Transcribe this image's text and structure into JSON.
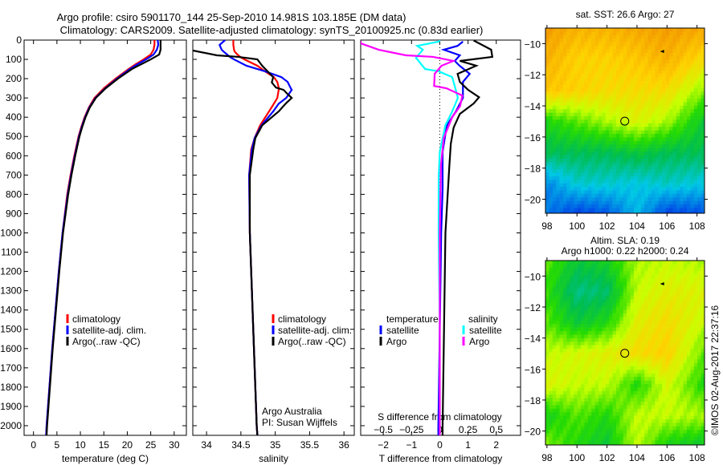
{
  "title": {
    "line1": "Argo profile: csiro 5901170_144 25-Sep-2010 14.981S 103.185E (DM data)",
    "line2": "Climatology: CARS2009. Satellite-adjusted climatology: synTS_20100925.nc (0.83d earlier)"
  },
  "credits": {
    "institution": "Argo Australia",
    "pi": "PI: Susan Wijffels"
  },
  "timestamp": "©IMOS 02-Aug-2017 22:37:16",
  "colors": {
    "climatology": "#ff0000",
    "satellite": "#0000ff",
    "argo": "#000000",
    "sal_satellite": "#00ffff",
    "sal_argo": "#ff00ff"
  },
  "chart_data": [
    {
      "type": "line",
      "id": "temperature",
      "xlabel": "temperature (deg C)",
      "ylabel": "depth",
      "xlim": [
        -2,
        32.6
      ],
      "ylim": [
        2050,
        0
      ],
      "xticks": [
        0,
        5,
        10,
        15,
        20,
        25,
        30
      ],
      "yticks": [
        0,
        100,
        200,
        300,
        400,
        500,
        600,
        700,
        800,
        900,
        1000,
        1100,
        1200,
        1300,
        1400,
        1500,
        1600,
        1700,
        1800,
        1900,
        2000
      ],
      "legend": [
        "climatology",
        "satellite-adj. clim.",
        "Argo(..raw -QC)"
      ],
      "series": [
        {
          "name": "climatology",
          "color": "#ff0000",
          "depth": [
            0,
            25,
            50,
            75,
            100,
            125,
            150,
            200,
            250,
            300,
            350,
            400,
            450,
            500,
            600,
            700,
            800,
            1000,
            1200,
            1400,
            1600,
            1800,
            2000,
            2050
          ],
          "values": [
            25.8,
            25.8,
            25.6,
            25,
            23.5,
            21.8,
            20.3,
            17.5,
            15,
            13,
            11.8,
            10.9,
            10.2,
            9.6,
            8.7,
            7.9,
            7.2,
            6.2,
            5.4,
            4.7,
            4,
            3.4,
            2.8,
            2.7
          ]
        },
        {
          "name": "satellite-adj. clim.",
          "color": "#0000ff",
          "depth": [
            0,
            25,
            50,
            75,
            100,
            125,
            150,
            200,
            250,
            300,
            350,
            400,
            450,
            500,
            600,
            700,
            800,
            1000,
            1200,
            1400,
            1600,
            1800,
            2000,
            2050
          ],
          "values": [
            26.5,
            26.6,
            26.3,
            25.6,
            24,
            22.2,
            20.6,
            17.8,
            15.3,
            13.2,
            11.9,
            11,
            10.3,
            9.7,
            8.8,
            8,
            7.3,
            6.2,
            5.4,
            4.7,
            4,
            3.4,
            2.8,
            2.7
          ]
        },
        {
          "name": "Argo(..raw -QC)",
          "color": "#000000",
          "depth": [
            0,
            25,
            50,
            75,
            100,
            125,
            150,
            200,
            250,
            300,
            350,
            400,
            450,
            500,
            600,
            700,
            800,
            1000,
            1200,
            1400,
            1600,
            1800,
            2000,
            2050
          ],
          "values": [
            27.1,
            27.1,
            27.1,
            26.8,
            25,
            23,
            21,
            18,
            15.4,
            13.3,
            12,
            11.1,
            10.4,
            9.8,
            8.9,
            8.1,
            7.4,
            6.3,
            5.5,
            4.8,
            4.1,
            3.5,
            2.9,
            2.8
          ]
        }
      ]
    },
    {
      "type": "line",
      "id": "salinity",
      "xlabel": "salinity",
      "ylabel": "depth",
      "xlim": [
        33.8,
        36.15
      ],
      "ylim": [
        2050,
        0
      ],
      "xticks": [
        34,
        34.5,
        35,
        35.5,
        36
      ],
      "legend": [
        "climatology",
        "satellite-adj. clim.",
        "Argo(..raw -QC)"
      ],
      "series": [
        {
          "name": "climatology",
          "color": "#ff0000",
          "depth": [
            0,
            25,
            50,
            60,
            75,
            90,
            100,
            133,
            162,
            192,
            217,
            246,
            258,
            300,
            330,
            370,
            442,
            508,
            567,
            700,
            1000,
            1500,
            2000,
            2050
          ],
          "values": [
            34.39,
            34.39,
            34.4,
            34.41,
            34.45,
            34.5,
            34.55,
            34.74,
            34.85,
            34.98,
            35.03,
            35.05,
            35.05,
            35.03,
            34.98,
            34.91,
            34.78,
            34.7,
            34.65,
            34.62,
            34.63,
            34.68,
            34.73,
            34.74
          ]
        },
        {
          "name": "satellite-adj. clim.",
          "color": "#0000ff",
          "depth": [
            0,
            25,
            50,
            60,
            75,
            90,
            100,
            133,
            162,
            192,
            217,
            246,
            258,
            300,
            330,
            370,
            442,
            508,
            567,
            700,
            1000,
            1500,
            2000,
            2050
          ],
          "values": [
            34.27,
            34.19,
            34.22,
            34.25,
            34.3,
            34.35,
            34.4,
            34.58,
            34.85,
            35.09,
            35.18,
            35.22,
            35.24,
            35.16,
            35.05,
            34.97,
            34.8,
            34.7,
            34.66,
            34.62,
            34.63,
            34.68,
            34.73,
            34.74
          ]
        },
        {
          "name": "Argo(..raw -QC)",
          "color": "#000000",
          "depth": [
            54,
            79,
            87,
            100,
            133,
            192,
            220,
            246,
            258,
            280,
            300,
            330,
            370,
            442,
            508,
            567,
            700,
            1000,
            1500,
            2000,
            2050
          ],
          "values": [
            33.8,
            34.15,
            34.46,
            34.74,
            34.81,
            34.97,
            34.95,
            35.01,
            35.12,
            35.18,
            35.24,
            35.15,
            35.05,
            34.81,
            34.71,
            34.68,
            34.63,
            34.63,
            34.68,
            34.73,
            34.74
          ]
        }
      ]
    },
    {
      "type": "line",
      "id": "difference",
      "xlabel": "T difference from climatology",
      "x2label": "S difference from climatology",
      "xlim": [
        -2.8,
        2.86
      ],
      "ylim": [
        2050,
        0
      ],
      "s_per_t": 0.25,
      "xticks": [
        -2,
        -1,
        0,
        1,
        2
      ],
      "x2ticks": [
        -0.5,
        -0.25,
        0,
        0.25,
        0.5
      ],
      "legend_headers": [
        "temperature",
        "salinity"
      ],
      "legend": [
        "satellite",
        "Argo",
        "satellite",
        "Argo"
      ],
      "series": [
        {
          "name": "temperature satellite",
          "variable": "T",
          "color": "#0000ff",
          "depth": [
            8,
            30,
            50,
            79,
            108,
            133,
            175,
            217,
            300,
            370,
            442,
            579,
            775,
            1000,
            1500,
            2000,
            2050
          ],
          "values": [
            0.82,
            0.63,
            0.14,
            0.71,
            0.53,
            0.7,
            1.06,
            0.82,
            0.82,
            0.57,
            0.25,
            0.1,
            0.1,
            0.05,
            0,
            -0.05,
            -0.05
          ]
        },
        {
          "name": "temperature Argo",
          "variable": "T",
          "color": "#000000",
          "depth": [
            2,
            50,
            87,
            108,
            133,
            175,
            217,
            258,
            296,
            329,
            383,
            454,
            538,
            650,
            775,
            1000,
            1500,
            2000,
            2050
          ],
          "values": [
            1.2,
            1.82,
            1.86,
            0.71,
            1.29,
            0.63,
            0.71,
            1.0,
            1.39,
            1.2,
            0.71,
            0.49,
            0.39,
            0.34,
            0.29,
            0.2,
            0.15,
            0.1,
            0.1
          ]
        },
        {
          "name": "salinity satellite",
          "variable": "S",
          "color": "#00ffff",
          "depth": [
            0,
            8,
            30,
            50,
            92,
            150,
            162,
            192,
            233,
            300,
            370,
            442,
            579,
            717,
            1000,
            1500,
            2000,
            2050
          ],
          "values": [
            0,
            -0.01,
            -0.2,
            -0.15,
            -0.21,
            -0.13,
            -0.01,
            0.11,
            0.13,
            0.16,
            0.11,
            0.05,
            0,
            -0.01,
            -0.01,
            0,
            0,
            0
          ]
        },
        {
          "name": "salinity Argo",
          "variable": "S",
          "color": "#ff00ff",
          "depth": [
            5,
            17,
            50,
            79,
            87,
            108,
            133,
            175,
            238,
            250,
            288,
            342,
            400,
            508,
            650,
            1000,
            1500,
            2000,
            2050
          ],
          "values": [
            -0.7,
            -0.7,
            -0.54,
            -0.3,
            -0.06,
            0.12,
            0.015,
            -0.045,
            -0.05,
            0.06,
            0.2,
            0.18,
            0.11,
            0.035,
            0.01,
            0,
            0,
            0,
            0
          ]
        }
      ]
    },
    {
      "type": "heatmap",
      "id": "sst-map",
      "title": "sat. SST: 26.6 Argo: 27",
      "xlim": [
        97.9,
        108.5
      ],
      "ylim": [
        -20.9,
        -9.0
      ],
      "xticks": [
        98,
        100,
        102,
        104,
        106,
        108
      ],
      "yticks": [
        -10,
        -12,
        -14,
        -16,
        -18,
        -20
      ],
      "grid_lats": [
        -9,
        -11,
        -13,
        -15,
        -17,
        -19,
        -21
      ],
      "grid_lons": [
        98,
        100,
        102,
        104,
        106,
        108.5
      ],
      "grid_values_normalized": [
        [
          0.82,
          0.78,
          0.78,
          0.8,
          0.82,
          0.8
        ],
        [
          0.78,
          0.72,
          0.72,
          0.74,
          0.78,
          0.7
        ],
        [
          0.74,
          0.72,
          0.7,
          0.7,
          0.7,
          0.58
        ],
        [
          0.5,
          0.55,
          0.6,
          0.65,
          0.6,
          0.45
        ],
        [
          0.42,
          0.42,
          0.42,
          0.45,
          0.42,
          0.42
        ],
        [
          0.22,
          0.32,
          0.32,
          0.3,
          0.33,
          0.3
        ],
        [
          0.2,
          0.12,
          0.15,
          0.28,
          0.12,
          0.15
        ]
      ],
      "profile_location": [
        103.185,
        -14.981
      ],
      "marker_location": [
        105.7,
        -10.5
      ]
    },
    {
      "type": "heatmap",
      "id": "sla-map",
      "title": "Altim. SLA: 0.19",
      "subtitle": "Argo h1000: 0.22 h2000: 0.24",
      "xlim": [
        97.9,
        108.5
      ],
      "ylim": [
        -20.9,
        -9.0
      ],
      "xticks": [
        98,
        100,
        102,
        104,
        106,
        108
      ],
      "yticks": [
        -10,
        -12,
        -14,
        -16,
        -18,
        -20
      ],
      "grid_lats": [
        -9,
        -11,
        -13,
        -15,
        -17,
        -19,
        -21
      ],
      "grid_lons": [
        98,
        100,
        102,
        104,
        106,
        108.5
      ],
      "grid_values_normalized": [
        [
          0.55,
          0.45,
          0.48,
          0.6,
          0.62,
          0.6
        ],
        [
          0.52,
          0.38,
          0.4,
          0.62,
          0.66,
          0.65
        ],
        [
          0.55,
          0.45,
          0.5,
          0.66,
          0.7,
          0.62
        ],
        [
          0.62,
          0.64,
          0.66,
          0.7,
          0.72,
          0.55
        ],
        [
          0.65,
          0.62,
          0.62,
          0.5,
          0.64,
          0.5
        ],
        [
          0.48,
          0.55,
          0.5,
          0.62,
          0.62,
          0.6
        ],
        [
          0.58,
          0.5,
          0.45,
          0.62,
          0.48,
          0.45
        ]
      ],
      "profile_location": [
        103.185,
        -14.981
      ],
      "marker_location": [
        105.7,
        -10.5
      ]
    }
  ]
}
